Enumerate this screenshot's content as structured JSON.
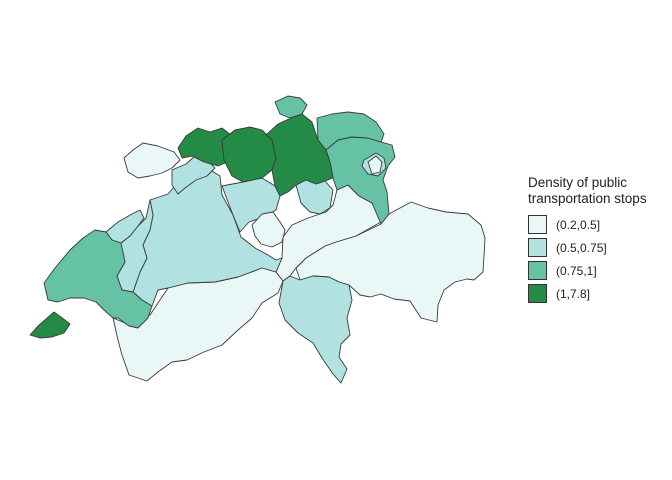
{
  "legend": {
    "title_line1": "Density of public",
    "title_line2": "transportation stops",
    "items": [
      {
        "label": "(0.2,0.5]",
        "color": "#eaf7f7"
      },
      {
        "label": "(0.5,0.75]",
        "color": "#b2e1e1"
      },
      {
        "label": "(0.75,1]",
        "color": "#66c2a4"
      },
      {
        "label": "(1,7.8]",
        "color": "#238b45"
      }
    ]
  },
  "regions": [
    {
      "name": "valais",
      "class": 0
    },
    {
      "name": "graubunden",
      "class": 0
    },
    {
      "name": "uri-schwyz-glarus",
      "class": 0
    },
    {
      "name": "jura",
      "class": 0
    },
    {
      "name": "ticino",
      "class": 1
    },
    {
      "name": "bern",
      "class": 1
    },
    {
      "name": "solothurn",
      "class": 1
    },
    {
      "name": "lucerne",
      "class": 1
    },
    {
      "name": "fribourg",
      "class": 1
    },
    {
      "name": "neuchatel",
      "class": 1
    },
    {
      "name": "zug",
      "class": 1
    },
    {
      "name": "obwalden-nidwalden",
      "class": 0
    },
    {
      "name": "vaud",
      "class": 2
    },
    {
      "name": "st-gallen",
      "class": 2
    },
    {
      "name": "thurgau",
      "class": 2
    },
    {
      "name": "schaffhausen",
      "class": 2
    },
    {
      "name": "appenzell",
      "class": 1
    },
    {
      "name": "geneva",
      "class": 3
    },
    {
      "name": "basel",
      "class": 3
    },
    {
      "name": "aargau",
      "class": 3
    },
    {
      "name": "zurich",
      "class": 3
    }
  ]
}
